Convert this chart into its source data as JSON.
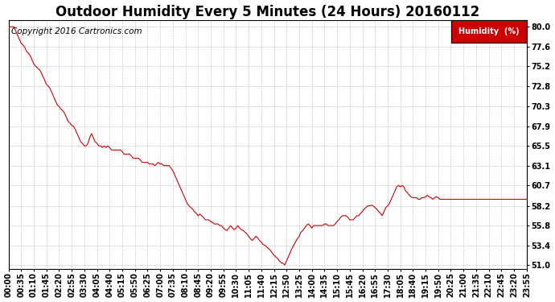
{
  "title": "Outdoor Humidity Every 5 Minutes (24 Hours) 20160112",
  "copyright": "Copyright 2016 Cartronics.com",
  "legend_label": "Humidity  (%)",
  "yticks": [
    51.0,
    53.4,
    55.8,
    58.2,
    60.7,
    63.1,
    65.5,
    67.9,
    70.3,
    72.8,
    75.2,
    77.6,
    80.0
  ],
  "ylim": [
    50.5,
    80.8
  ],
  "line_color": "#cc0000",
  "legend_bg": "#cc0000",
  "legend_text_color": "#ffffff",
  "grid_color": "#aaaaaa",
  "title_fontsize": 12,
  "tick_fontsize": 7,
  "copyright_fontsize": 7.5,
  "xtick_step": 7,
  "humidity_data": [
    80.0,
    80.0,
    80.0,
    80.0,
    79.5,
    79.0,
    78.5,
    78.0,
    77.8,
    77.5,
    77.0,
    76.8,
    76.5,
    76.0,
    75.5,
    75.2,
    75.0,
    74.8,
    74.5,
    74.0,
    73.5,
    73.0,
    72.8,
    72.5,
    72.0,
    71.5,
    71.0,
    70.5,
    70.3,
    70.0,
    69.8,
    69.5,
    69.0,
    68.5,
    68.3,
    68.0,
    67.9,
    67.5,
    67.0,
    66.5,
    66.0,
    65.8,
    65.5,
    65.5,
    65.8,
    66.5,
    67.0,
    66.5,
    66.0,
    65.8,
    65.5,
    65.5,
    65.3,
    65.5,
    65.3,
    65.5,
    65.3,
    65.0,
    65.0,
    65.0,
    65.0,
    65.0,
    65.0,
    64.8,
    64.5,
    64.5,
    64.5,
    64.5,
    64.3,
    64.0,
    64.0,
    64.0,
    64.0,
    63.8,
    63.5,
    63.5,
    63.5,
    63.5,
    63.3,
    63.3,
    63.3,
    63.1,
    63.3,
    63.5,
    63.3,
    63.3,
    63.1,
    63.1,
    63.1,
    63.1,
    62.8,
    62.5,
    62.0,
    61.5,
    61.0,
    60.5,
    60.0,
    59.5,
    59.0,
    58.5,
    58.2,
    58.0,
    57.8,
    57.5,
    57.3,
    57.0,
    57.2,
    57.0,
    56.8,
    56.5,
    56.5,
    56.5,
    56.3,
    56.2,
    56.0,
    56.0,
    56.0,
    55.8,
    55.8,
    55.5,
    55.3,
    55.2,
    55.5,
    55.8,
    55.5,
    55.3,
    55.5,
    55.8,
    55.5,
    55.3,
    55.2,
    55.0,
    54.8,
    54.5,
    54.2,
    54.0,
    54.2,
    54.5,
    54.3,
    54.0,
    53.8,
    53.5,
    53.4,
    53.2,
    53.0,
    52.8,
    52.5,
    52.2,
    52.0,
    51.8,
    51.5,
    51.3,
    51.2,
    51.0,
    51.5,
    52.0,
    52.5,
    53.0,
    53.4,
    53.8,
    54.2,
    54.5,
    55.0,
    55.2,
    55.5,
    55.8,
    56.0,
    55.8,
    55.5,
    55.8,
    55.8,
    55.8,
    55.8,
    55.8,
    55.8,
    56.0,
    56.0,
    55.8,
    55.8,
    55.8,
    55.8,
    56.0,
    56.3,
    56.5,
    56.8,
    57.0,
    57.0,
    57.0,
    56.8,
    56.5,
    56.5,
    56.5,
    56.8,
    57.0,
    57.0,
    57.3,
    57.5,
    57.8,
    58.0,
    58.2,
    58.2,
    58.3,
    58.2,
    58.0,
    57.8,
    57.5,
    57.3,
    57.0,
    57.5,
    58.0,
    58.2,
    58.5,
    59.0,
    59.5,
    60.0,
    60.5,
    60.7,
    60.5,
    60.7,
    60.5,
    60.0,
    59.8,
    59.5,
    59.3,
    59.2,
    59.2,
    59.2,
    59.0,
    59.0,
    59.2,
    59.2,
    59.3,
    59.5,
    59.3,
    59.2,
    59.0,
    59.2,
    59.3,
    59.2,
    59.0,
    59.0,
    59.0,
    59.0,
    59.0,
    59.0,
    59.0,
    59.0,
    59.0,
    59.0,
    59.0,
    59.0,
    59.0,
    59.0,
    59.0,
    59.0,
    59.0,
    59.0,
    59.0,
    59.0,
    59.0,
    59.0,
    59.0,
    59.0,
    59.0,
    59.0,
    59.0,
    59.0,
    59.0,
    59.0,
    59.0,
    59.0,
    59.0,
    59.0,
    59.0,
    59.0,
    59.0,
    59.0,
    59.0,
    59.0,
    59.0,
    59.0,
    59.0,
    59.0,
    59.0,
    59.0,
    59.0,
    59.0,
    59.0
  ]
}
